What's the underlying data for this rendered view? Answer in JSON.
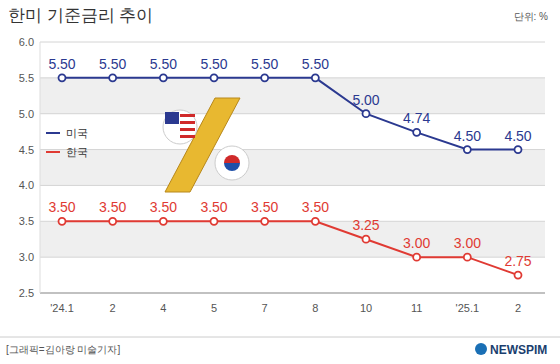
{
  "chart_data": {
    "type": "line",
    "title": "한미 기준금리 추이",
    "ylabel": "단위: %",
    "annotations": [
      "[그래픽=김아랑 미술기자]",
      "NEWSPIM"
    ],
    "categories": [
      "'24.1",
      "2",
      "4",
      "5",
      "7",
      "8",
      "10",
      "11",
      "'25.1",
      "2"
    ],
    "series": [
      {
        "name": "미국",
        "color": "#2b3990",
        "values": [
          5.5,
          5.5,
          5.5,
          5.5,
          5.5,
          5.5,
          5.0,
          4.74,
          4.5,
          4.5
        ],
        "value_labels": [
          "5.50",
          "5.50",
          "5.50",
          "5.50",
          "5.50",
          "5.50",
          "5.00",
          "4.74",
          "4.50",
          "4.50"
        ]
      },
      {
        "name": "한국",
        "color": "#e03a33",
        "values": [
          3.5,
          3.5,
          3.5,
          3.5,
          3.5,
          3.5,
          3.25,
          3.0,
          3.0,
          2.75
        ],
        "value_labels": [
          "3.50",
          "3.50",
          "3.50",
          "3.50",
          "3.50",
          "3.50",
          "3.25",
          "3.00",
          "3.00",
          "2.75"
        ]
      }
    ],
    "ylim": [
      2.5,
      6.0
    ],
    "yticks": [
      {
        "value": 2.5,
        "label": "2.5"
      },
      {
        "value": 3,
        "label": "3.0"
      },
      {
        "value": 3.5,
        "label": "3.5"
      },
      {
        "value": 4,
        "label": "4.0"
      },
      {
        "value": 4.5,
        "label": "4.5"
      },
      {
        "value": 5,
        "label": "5.0"
      },
      {
        "value": 5.5,
        "label": "5.5"
      },
      {
        "value": 6,
        "label": "6.0"
      }
    ],
    "grid": true,
    "legend": "left",
    "data_labels": true,
    "marker": "circle"
  }
}
